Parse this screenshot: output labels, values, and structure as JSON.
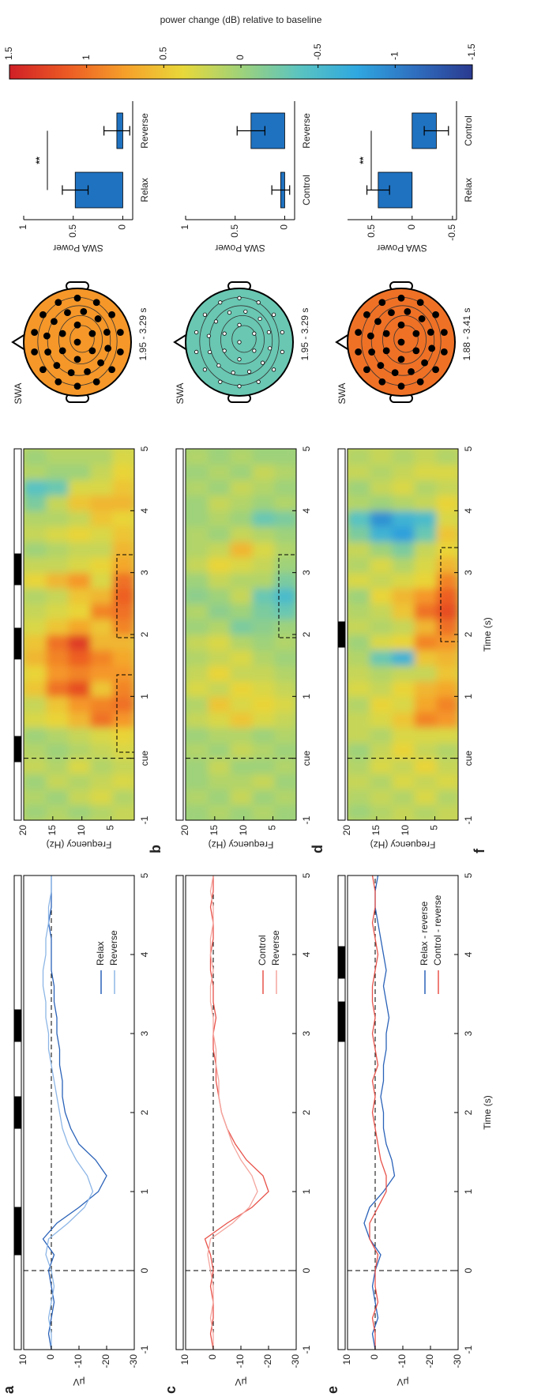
{
  "chart_data": [
    {
      "type": "line",
      "panel_label": "a",
      "ylabel": "μV",
      "xlim": [
        -1,
        5
      ],
      "ylim": [
        -30,
        10
      ],
      "xticks": [
        -1,
        0,
        1,
        2,
        3,
        4,
        5
      ],
      "yticks": [
        10,
        0,
        -10,
        -20,
        -30
      ],
      "legend": "lower right",
      "x": [
        -1,
        -0.8,
        -0.6,
        -0.4,
        -0.2,
        0,
        0.2,
        0.4,
        0.6,
        0.8,
        1,
        1.2,
        1.4,
        1.6,
        1.8,
        2,
        2.2,
        2.4,
        2.6,
        2.8,
        3,
        3.2,
        3.4,
        3.6,
        3.8,
        4,
        4.2,
        4.4,
        4.6,
        4.8,
        5
      ],
      "series": [
        {
          "name": "Relax",
          "color": "#2a62b8",
          "values": [
            0,
            1,
            0,
            -1,
            0,
            1,
            -1,
            3,
            -2,
            -10,
            -17,
            -20,
            -16,
            -10,
            -7,
            -5,
            -4,
            -4,
            -3,
            -3,
            -2,
            -2,
            -1,
            -1,
            0,
            0,
            0,
            1,
            0,
            0,
            0
          ]
        },
        {
          "name": "Reverse",
          "color": "#8db6e6",
          "values": [
            0,
            0,
            1,
            0,
            -1,
            0,
            2,
            1,
            -6,
            -12,
            -15,
            -13,
            -9,
            -6,
            -4,
            -3,
            -2,
            -1,
            0,
            1,
            1,
            2,
            2,
            3,
            3,
            2,
            2,
            1,
            1,
            0,
            0
          ]
        }
      ]
    },
    {
      "type": "heatmap",
      "panel_label": "b",
      "ylabel": "Frequency (Hz)",
      "xlim": [
        -1,
        5
      ],
      "ylim": [
        1,
        20
      ],
      "xticks": [
        -1,
        {
          "value": 0,
          "label": "cue"
        },
        1,
        2,
        3,
        4,
        5
      ],
      "yticks": [
        20,
        15,
        10,
        5
      ],
      "x": [
        -0.875,
        -0.625,
        -0.375,
        -0.125,
        0.125,
        0.375,
        0.625,
        0.875,
        1.125,
        1.375,
        1.625,
        1.875,
        2.125,
        2.375,
        2.625,
        2.875,
        3.125,
        3.375,
        3.625,
        3.875,
        4.125,
        4.375,
        4.625,
        4.875
      ],
      "y": [
        2.9,
        6.7,
        10.5,
        14.3,
        18.1
      ],
      "z": [
        [
          0.2,
          0.1,
          0.3,
          0.2,
          0.3,
          0.4,
          0.8,
          1.0,
          0.9,
          0.8,
          0.7,
          0.6,
          0.9,
          1.0,
          1.1,
          1.0,
          0.7,
          0.6,
          0.5,
          0.4,
          0.6,
          0.5,
          0.4,
          0.3
        ],
        [
          0.1,
          0.3,
          0.2,
          0.1,
          0.2,
          0.3,
          1.0,
          0.9,
          0.5,
          0.8,
          0.9,
          0.6,
          0.5,
          0.9,
          0.6,
          0.3,
          0.4,
          0.2,
          0.3,
          0.5,
          0.6,
          0.3,
          0.2,
          0.1
        ],
        [
          0.0,
          0.2,
          0.1,
          0.3,
          0.1,
          0.2,
          0.6,
          0.8,
          1.2,
          0.9,
          1.1,
          1.3,
          0.7,
          0.4,
          0.5,
          0.8,
          0.3,
          0.2,
          0.4,
          0.2,
          0.5,
          0.3,
          0.0,
          0.1
        ],
        [
          0.1,
          0.0,
          0.2,
          0.1,
          0.0,
          0.1,
          0.4,
          0.5,
          1.0,
          0.8,
          0.9,
          1.0,
          0.5,
          0.3,
          0.2,
          0.6,
          0.2,
          0.1,
          0.3,
          0.1,
          0.2,
          -0.3,
          0.0,
          0.1
        ],
        [
          0.0,
          0.1,
          0.0,
          0.2,
          0.1,
          0.0,
          0.3,
          0.2,
          0.5,
          0.4,
          0.6,
          0.5,
          0.3,
          0.2,
          0.1,
          0.4,
          0.2,
          0.0,
          0.2,
          0.1,
          -0.2,
          -0.4,
          0.1,
          0.0
        ]
      ]
    },
    {
      "type": "topomap",
      "title": "SWA",
      "subtitle": "1.95 - 3.29 s",
      "value": 0.8
    },
    {
      "type": "bar",
      "ylabel": "SWA Power",
      "categories": [
        "Relax",
        "Reverse"
      ],
      "values": [
        0.48,
        0.06
      ],
      "errors": [
        0.13,
        0.13
      ],
      "color": "#1f72c0",
      "ylim": [
        -0.1,
        1
      ],
      "yticks": [
        0,
        0.5,
        1
      ],
      "annotation": "**"
    },
    {
      "type": "line",
      "panel_label": "c",
      "ylabel": "μV",
      "xlim": [
        -1,
        5
      ],
      "ylim": [
        -30,
        10
      ],
      "xticks": [
        -1,
        0,
        1,
        2,
        3,
        4,
        5
      ],
      "yticks": [
        10,
        0,
        -10,
        -20,
        -30
      ],
      "legend": "lower right",
      "x": [
        -1,
        -0.8,
        -0.6,
        -0.4,
        -0.2,
        0,
        0.2,
        0.4,
        0.6,
        0.8,
        1,
        1.2,
        1.4,
        1.6,
        1.8,
        2,
        2.2,
        2.4,
        2.6,
        2.8,
        3,
        3.2,
        3.4,
        3.6,
        3.8,
        4,
        4.2,
        4.4,
        4.6,
        4.8,
        5
      ],
      "series": [
        {
          "name": "Control",
          "color": "#e8524a",
          "values": [
            0,
            1,
            0,
            0,
            1,
            0,
            1,
            3,
            -5,
            -14,
            -20,
            -18,
            -12,
            -8,
            -5,
            -3,
            -2,
            -1,
            -1,
            0,
            0,
            -1,
            0,
            0,
            1,
            1,
            0,
            0,
            1,
            0,
            0
          ]
        },
        {
          "name": "Reverse",
          "color": "#f4a59e",
          "values": [
            0,
            0,
            1,
            0,
            0,
            1,
            2,
            1,
            -7,
            -13,
            -16,
            -14,
            -10,
            -7,
            -5,
            -3,
            -2,
            -2,
            -1,
            -1,
            0,
            0,
            1,
            1,
            0,
            1,
            1,
            0,
            0,
            1,
            0
          ]
        }
      ]
    },
    {
      "type": "heatmap",
      "panel_label": "d",
      "ylabel": "Frequency (Hz)",
      "xlim": [
        -1,
        5
      ],
      "ylim": [
        1,
        20
      ],
      "xticks": [
        -1,
        {
          "value": 0,
          "label": "cue"
        },
        1,
        2,
        3,
        4,
        5
      ],
      "yticks": [
        20,
        15,
        10,
        5
      ],
      "x": [
        -0.875,
        -0.625,
        -0.375,
        -0.125,
        0.125,
        0.375,
        0.625,
        0.875,
        1.125,
        1.375,
        1.625,
        1.875,
        2.125,
        2.375,
        2.625,
        2.875,
        3.125,
        3.375,
        3.625,
        3.875,
        4.125,
        4.375,
        4.625,
        4.875
      ],
      "y": [
        2.9,
        6.7,
        10.5,
        14.3,
        18.1
      ],
      "z": [
        [
          0.0,
          0.1,
          0.0,
          0.1,
          0.0,
          0.1,
          0.2,
          0.3,
          0.2,
          0.1,
          0.0,
          0.1,
          0.0,
          -0.3,
          -0.5,
          -0.2,
          0.0,
          0.1,
          0.0,
          -0.2,
          0.1,
          0.0,
          0.1,
          0.0
        ],
        [
          0.1,
          0.0,
          0.2,
          0.0,
          0.1,
          0.0,
          0.3,
          0.4,
          0.3,
          0.2,
          0.1,
          0.0,
          -0.1,
          -0.2,
          -0.3,
          0.1,
          0.2,
          0.3,
          0.1,
          -0.3,
          0.0,
          0.1,
          0.2,
          0.0
        ],
        [
          0.0,
          0.2,
          0.1,
          0.0,
          0.2,
          0.1,
          0.5,
          0.3,
          0.4,
          0.2,
          0.3,
          0.1,
          -0.2,
          0.0,
          0.2,
          0.1,
          0.3,
          0.6,
          0.2,
          0.0,
          0.1,
          0.2,
          0.0,
          0.1
        ],
        [
          0.1,
          0.0,
          0.1,
          0.2,
          0.0,
          0.1,
          0.3,
          0.5,
          0.2,
          0.4,
          0.2,
          0.3,
          0.1,
          -0.1,
          0.0,
          0.2,
          0.4,
          0.2,
          0.0,
          0.1,
          0.2,
          0.0,
          0.1,
          0.0
        ],
        [
          0.0,
          0.1,
          0.0,
          0.0,
          0.1,
          0.0,
          0.2,
          0.1,
          0.3,
          0.2,
          0.1,
          0.2,
          0.0,
          0.1,
          -0.1,
          0.0,
          0.2,
          0.1,
          0.1,
          0.0,
          0.0,
          0.1,
          0.0,
          0.1
        ]
      ]
    },
    {
      "type": "topomap",
      "title": "SWA",
      "subtitle": "1.95 - 3.29 s",
      "value": -0.3
    },
    {
      "type": "bar",
      "ylabel": "SWA Power",
      "categories": [
        "Control",
        "Reverse"
      ],
      "values": [
        0.04,
        0.34
      ],
      "errors": [
        0.09,
        0.14
      ],
      "color": "#1f72c0",
      "ylim": [
        -0.1,
        1
      ],
      "yticks": [
        0,
        0.5,
        1
      ]
    },
    {
      "type": "line",
      "panel_label": "e",
      "ylabel": "μV",
      "xlabel": "Time (s)",
      "xlim": [
        -1,
        5
      ],
      "ylim": [
        -30,
        10
      ],
      "xticks": [
        -1,
        0,
        1,
        2,
        3,
        4,
        5
      ],
      "yticks": [
        10,
        0,
        -10,
        -20,
        -30
      ],
      "legend": "lower right",
      "x": [
        -1,
        -0.8,
        -0.6,
        -0.4,
        -0.2,
        0,
        0.2,
        0.4,
        0.6,
        0.8,
        1,
        1.2,
        1.4,
        1.6,
        1.8,
        2,
        2.2,
        2.4,
        2.6,
        2.8,
        3,
        3.2,
        3.4,
        3.6,
        3.8,
        4,
        4.2,
        4.4,
        4.6,
        4.8,
        5
      ],
      "series": [
        {
          "name": "Relax - reverse",
          "color": "#2a62b8",
          "values": [
            0,
            1,
            -1,
            0,
            1,
            0,
            -2,
            2,
            4,
            2,
            -3,
            -7,
            -6,
            -4,
            -3,
            -3,
            -2,
            -3,
            -3,
            -4,
            -4,
            -5,
            -4,
            -3,
            -4,
            -3,
            -2,
            -1,
            0,
            0,
            -1
          ]
        },
        {
          "name": "Control - reverse",
          "color": "#e8524a",
          "values": [
            0,
            0,
            1,
            -1,
            0,
            0,
            -1,
            2,
            2,
            -1,
            -4,
            -4,
            -2,
            -1,
            0,
            1,
            0,
            1,
            -1,
            0,
            1,
            0,
            1,
            1,
            0,
            -1,
            0,
            1,
            0,
            0,
            1
          ]
        }
      ]
    },
    {
      "type": "heatmap",
      "panel_label": "f",
      "ylabel": "Frequency (Hz)",
      "xlabel": "Time (s)",
      "xlim": [
        -1,
        5
      ],
      "ylim": [
        1,
        20
      ],
      "xticks": [
        -1,
        {
          "value": 0,
          "label": "cue"
        },
        1,
        2,
        3,
        4,
        5
      ],
      "yticks": [
        20,
        15,
        10,
        5
      ],
      "x": [
        -0.875,
        -0.625,
        -0.375,
        -0.125,
        0.125,
        0.375,
        0.625,
        0.875,
        1.125,
        1.375,
        1.625,
        1.875,
        2.125,
        2.375,
        2.625,
        2.875,
        3.125,
        3.375,
        3.625,
        3.875,
        4.125,
        4.375,
        4.625,
        4.875
      ],
      "y": [
        2.9,
        6.7,
        10.5,
        14.3,
        18.1
      ],
      "z": [
        [
          0.2,
          0.1,
          0.3,
          0.2,
          0.1,
          0.3,
          0.8,
          0.9,
          0.7,
          0.5,
          0.6,
          0.8,
          1.0,
          1.2,
          1.1,
          0.9,
          0.6,
          0.4,
          0.5,
          0.3,
          0.4,
          0.2,
          0.3,
          0.1
        ],
        [
          0.1,
          0.3,
          0.2,
          0.4,
          0.2,
          0.3,
          0.9,
          0.7,
          0.6,
          0.2,
          0.5,
          0.9,
          0.6,
          1.0,
          0.8,
          0.4,
          0.3,
          0.2,
          -0.3,
          -0.5,
          0.2,
          0.1,
          0.3,
          0.2
        ],
        [
          0.2,
          0.1,
          0.3,
          0.2,
          0.4,
          0.3,
          0.5,
          0.3,
          0.4,
          0.2,
          -0.6,
          0.4,
          0.2,
          0.5,
          0.6,
          0.3,
          0.1,
          -0.2,
          -0.8,
          -0.6,
          0.1,
          0.3,
          0.2,
          0.1
        ],
        [
          0.1,
          0.2,
          0.1,
          0.3,
          0.2,
          0.1,
          0.3,
          0.4,
          0.2,
          0.1,
          -0.3,
          0.3,
          0.1,
          0.2,
          0.4,
          0.2,
          0.3,
          0.0,
          -0.6,
          -0.9,
          0.0,
          0.2,
          0.1,
          0.2
        ],
        [
          0.0,
          0.1,
          0.2,
          0.1,
          0.0,
          0.2,
          0.2,
          0.1,
          0.3,
          0.2,
          0.1,
          0.0,
          0.2,
          0.1,
          0.0,
          0.3,
          0.1,
          0.2,
          -0.2,
          -0.4,
          0.1,
          0.0,
          0.2,
          0.1
        ]
      ]
    },
    {
      "type": "topomap",
      "title": "SWA",
      "subtitle": "1.88 - 3.41 s",
      "value": 1.0
    },
    {
      "type": "bar",
      "ylabel": "SWA Power",
      "categories": [
        "Relax",
        "Control"
      ],
      "values": [
        0.42,
        -0.3
      ],
      "errors": [
        0.14,
        0.15
      ],
      "color": "#1f72c0",
      "ylim": [
        -0.55,
        0.8
      ],
      "yticks": [
        -0.5,
        0,
        0.5
      ],
      "annotation": "**"
    },
    {
      "type": "colorbar",
      "ylabel": "power change (dB) relative to baseline",
      "ylim": [
        -1.5,
        1.5
      ],
      "yticks": [
        1.5,
        1,
        0.5,
        0,
        -0.5,
        -1,
        -1.5
      ],
      "colormap": [
        "#2a3a8f",
        "#2f6fc0",
        "#2fa8e0",
        "#5bc4c0",
        "#9fd27a",
        "#e8d83a",
        "#f6a02a",
        "#ec5a24",
        "#d01f26"
      ]
    }
  ]
}
